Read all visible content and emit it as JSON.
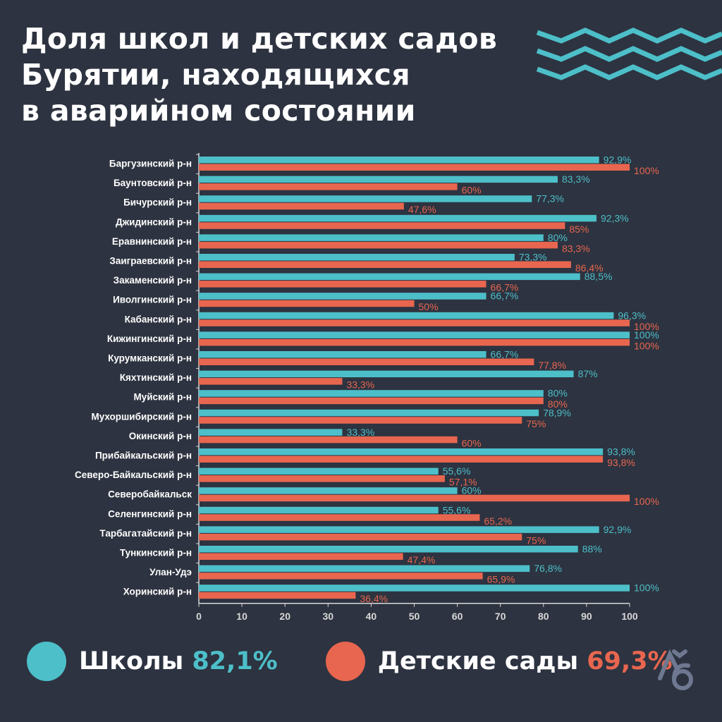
{
  "title": {
    "lines": [
      "Доля школ и детских садов",
      "Бурятии, находящихся",
      "в аварийном состоянии"
    ]
  },
  "colors": {
    "background": "#2d3340",
    "schools": "#4dbfc9",
    "kindergartens": "#e8664f",
    "text": "#ffffff",
    "axis": "#d8d8d8",
    "logo": "#6e7890"
  },
  "legend": [
    {
      "label": "Школы",
      "value": "82,1%",
      "series": "schools"
    },
    {
      "label": "Детские сады",
      "value": "69,3%",
      "series": "kindergartens"
    }
  ],
  "logo": {
    "icon": "lb-logo-icon",
    "text": "ЛБ"
  },
  "chart_data": {
    "type": "bar",
    "orientation": "horizontal",
    "title": "Доля школ и детских садов Бурятии, находящихся в аварийном состоянии",
    "xlabel": "",
    "ylabel": "",
    "xlim": [
      0,
      100
    ],
    "xticks": [
      0,
      10,
      20,
      30,
      40,
      50,
      60,
      70,
      80,
      90,
      100
    ],
    "grid": false,
    "legend_position": "bottom",
    "categories": [
      "Баргузинский р-н",
      "Баунтовский р-н",
      "Бичурский р-н",
      "Джидинский р-н",
      "Еравнинский р-н",
      "Заиграевский р-н",
      "Закаменский р-н",
      "Иволгинский р-н",
      "Кабанский р-н",
      "Кижингинский р-н",
      "Курумканский р-н",
      "Кяхтинский р-н",
      "Муйский р-н",
      "Мухоршибирский р-н",
      "Окинский р-н",
      "Прибайкальский р-н",
      "Северо-Байкальский р-н",
      "Северобайкальск",
      "Селенгинский р-н",
      "Тарбагатайский р-н",
      "Тункинский р-н",
      "Улан-Удэ",
      "Хоринский р-н"
    ],
    "series": [
      {
        "name": "Школы",
        "key": "schools",
        "total": "82,1%",
        "values": [
          92.9,
          83.3,
          77.3,
          92.3,
          80,
          73.3,
          88.5,
          66.7,
          96.3,
          100,
          66.7,
          87,
          80,
          78.9,
          33.3,
          93.8,
          55.6,
          60,
          55.6,
          92.9,
          88,
          76.8,
          100
        ],
        "labels": [
          "92,9%",
          "83,3%",
          "77,3%",
          "92,3%",
          "80%",
          "73,3%",
          "88,5%",
          "66,7%",
          "96,3%",
          "100%",
          "66,7%",
          "87%",
          "80%",
          "78,9%",
          "33,3%",
          "93,8%",
          "55,6%",
          "60%",
          "55,6%",
          "92,9%",
          "88%",
          "76,8%",
          "100%"
        ]
      },
      {
        "name": "Детские сады",
        "key": "kindergartens",
        "total": "69,3%",
        "values": [
          100,
          60,
          47.6,
          85,
          83.3,
          86.4,
          66.7,
          50,
          100,
          100,
          77.8,
          33.3,
          80,
          75,
          60,
          93.8,
          57.1,
          100,
          65.2,
          75,
          47.4,
          65.9,
          36.4
        ],
        "labels": [
          "100%",
          "60%",
          "47,6%",
          "85%",
          "83,3%",
          "86,4%",
          "66,7%",
          "50%",
          "100%",
          "100%",
          "77,8%",
          "33,3%",
          "80%",
          "75%",
          "60%",
          "93,8%",
          "57,1%",
          "100%",
          "65,2%",
          "75%",
          "47,4%",
          "65,9%",
          "36,4%"
        ]
      }
    ]
  }
}
